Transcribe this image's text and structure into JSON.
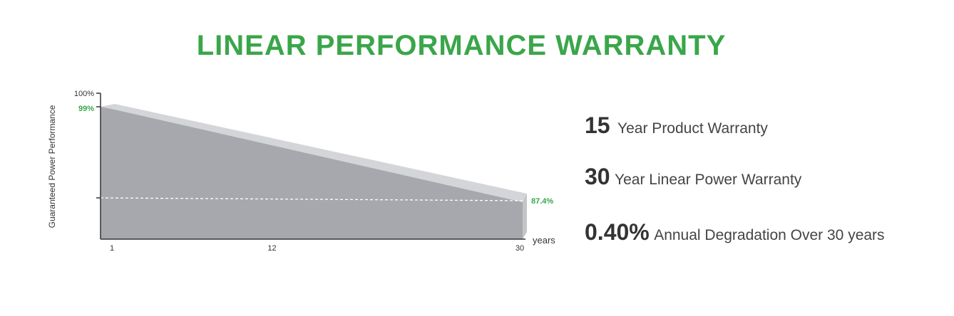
{
  "title": "LINEAR PERFORMANCE WARRANTY",
  "colors": {
    "title": "#3aa64a",
    "highlight": "#3aa64a",
    "area": "#a6a8ad",
    "area_top": "#d4d5d8",
    "axis": "#333333"
  },
  "stats": [
    {
      "value": "15",
      "label": "Year Product Warranty"
    },
    {
      "value": "30",
      "label": "Year Linear Power Warranty"
    },
    {
      "value": "0.40%",
      "label": "Annual Degradation Over 30 years"
    }
  ],
  "chart_data": {
    "type": "area",
    "ylabel": "Guaranteed Power Performance",
    "xlabel": "years",
    "x_ticks": [
      "1",
      "12",
      "30"
    ],
    "y_ticks": [
      {
        "value": 100,
        "label": "100%"
      },
      {
        "value": 99,
        "label": "99%"
      },
      {
        "value": 87.4,
        "label": "87.4%"
      }
    ],
    "series": [
      {
        "x": [
          1,
          30
        ],
        "values": [
          99,
          87.4
        ]
      }
    ],
    "reference_line": 87.4,
    "xlim": [
      1,
      30
    ],
    "grid": false
  }
}
